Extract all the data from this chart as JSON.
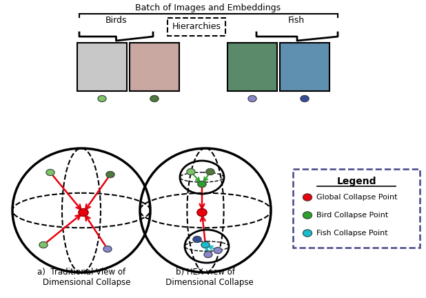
{
  "title_top": "Batch of Images and Embeddings",
  "label_birds": "Birds",
  "label_hierarchies": "Hierarchies",
  "label_fish": "Fish",
  "label_a": "a)  Traditional View of\n    Dimensional Collapse",
  "label_b": "b) HEX view of\n   Dimensional Collapse",
  "legend_title": "Legend",
  "legend_items": [
    {
      "color": "#e8000d",
      "label": "Global Collapse Point"
    },
    {
      "color": "#2ca02c",
      "label": "Bird Collapse Point"
    },
    {
      "color": "#17becf",
      "label": "Fish Collapse Point"
    }
  ],
  "dot_colors_under_images": [
    "#7dc46a",
    "#4d7a3a",
    "#8888cc",
    "#334d99"
  ],
  "bird_dot_color1": "#7dc46a",
  "bird_dot_color2": "#4d7a3a",
  "fish_dot_color1": "#8888cc",
  "fish_dot_color2": "#334d99",
  "red_color": "#e8000d",
  "green_color": "#2ca02c",
  "cyan_color": "#17becf",
  "background": "#ffffff"
}
